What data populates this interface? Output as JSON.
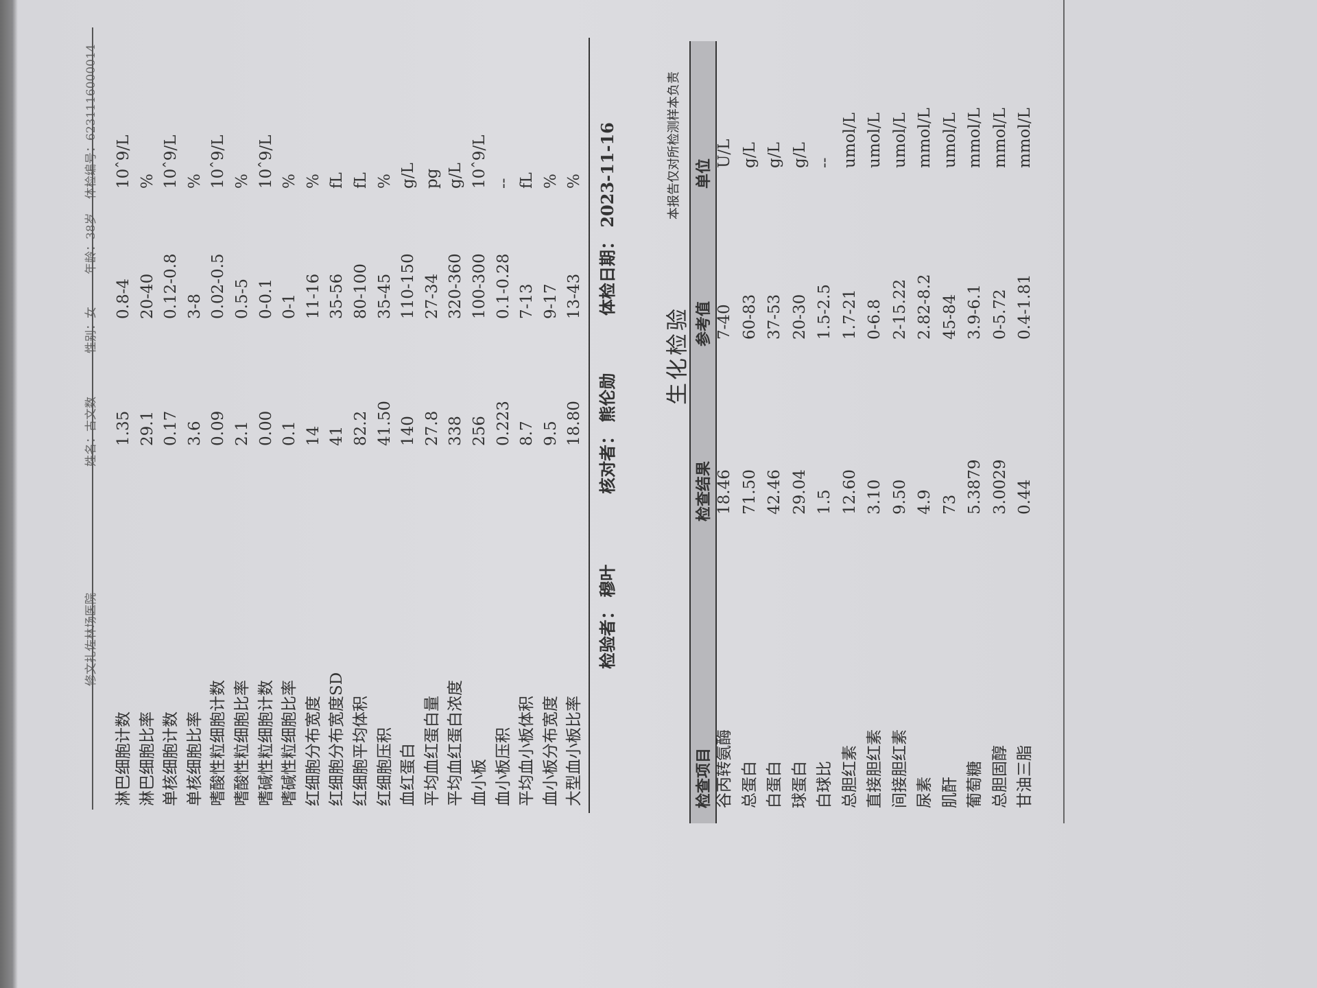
{
  "header": {
    "hospital": "修文扎佐林场医院",
    "name": "姓名：古文数",
    "sex": "性别：女",
    "age": "年龄：38岁",
    "exam_no": "体检编号：6231116000014"
  },
  "blood_routine": {
    "rows": [
      [
        "淋巴细胞计数",
        "1.35",
        "0.8-4",
        "10ˆ9/L"
      ],
      [
        "淋巴细胞比率",
        "29.1",
        "20-40",
        "%"
      ],
      [
        "单核细胞计数",
        "0.17",
        "0.12-0.8",
        "10ˆ9/L"
      ],
      [
        "单核细胞比率",
        "3.6",
        "3-8",
        "%"
      ],
      [
        "嗜酸性粒细胞计数",
        "0.09",
        "0.02-0.5",
        "10ˆ9/L"
      ],
      [
        "嗜酸性粒细胞比率",
        "2.1",
        "0.5-5",
        "%"
      ],
      [
        "嗜碱性粒细胞计数",
        "0.00",
        "0-0.1",
        "10ˆ9/L"
      ],
      [
        "嗜碱性粒细胞比率",
        "0.1",
        "0-1",
        "%"
      ],
      [
        "红细胞分布宽度",
        "14",
        "11-16",
        "%"
      ],
      [
        "红细胞分布宽度SD",
        "41",
        "35-56",
        "fL"
      ],
      [
        "红细胞平均体积",
        "82.2",
        "80-100",
        "fL"
      ],
      [
        "红细胞压积",
        "41.50",
        "35-45",
        "%"
      ],
      [
        "血红蛋白",
        "140",
        "110-150",
        "g/L"
      ],
      [
        "平均血红蛋白量",
        "27.8",
        "27-34",
        "pg"
      ],
      [
        "平均血红蛋白浓度",
        "338",
        "320-360",
        "g/L"
      ],
      [
        "血小板",
        "256",
        "100-300",
        "10ˆ9/L"
      ],
      [
        "血小板压积",
        "0.223",
        "0.1-0.28",
        "--"
      ],
      [
        "平均血小板体积",
        "8.7",
        "7-13",
        "fL"
      ],
      [
        "血小板分布宽度",
        "9.5",
        "9-17",
        "%"
      ],
      [
        "大型血小板比率",
        "18.80",
        "13-43",
        "%"
      ]
    ]
  },
  "signatures": {
    "tester": "检验者：  穆叶",
    "checker": "核对者：  熊伦勋",
    "date": "体检日期：  2023-11-16"
  },
  "biochem": {
    "title": "生化检验",
    "disclaimer": "本报告仅对所检测样本负责",
    "columns": [
      "检查项目",
      "检查结果",
      "参考值",
      "单位"
    ],
    "rows": [
      [
        "谷丙转氨酶",
        "18.46",
        "7-40",
        "U/L"
      ],
      [
        "总蛋白",
        "71.50",
        "60-83",
        "g/L"
      ],
      [
        "白蛋白",
        "42.46",
        "37-53",
        "g/L"
      ],
      [
        "球蛋白",
        "29.04",
        "20-30",
        "g/L"
      ],
      [
        "白球比",
        "1.5",
        "1.5-2.5",
        "--"
      ],
      [
        "总胆红素",
        "12.60",
        "1.7-21",
        "umol/L"
      ],
      [
        "直接胆红素",
        "3.10",
        "0-6.8",
        "umol/L"
      ],
      [
        "间接胆红素",
        "9.50",
        "2-15.22",
        "umol/L"
      ],
      [
        "尿素",
        "4.9",
        "2.82-8.2",
        "mmol/L"
      ],
      [
        "肌酐",
        "73",
        "45-84",
        "umol/L"
      ],
      [
        "葡萄糖",
        "5.3879",
        "3.9-6.1",
        "mmol/L"
      ],
      [
        "总胆固醇",
        "3.0029",
        "0-5.72",
        "mmol/L"
      ],
      [
        "甘油三脂",
        "0.44",
        "0.4-1.81",
        "mmol/L"
      ]
    ]
  }
}
